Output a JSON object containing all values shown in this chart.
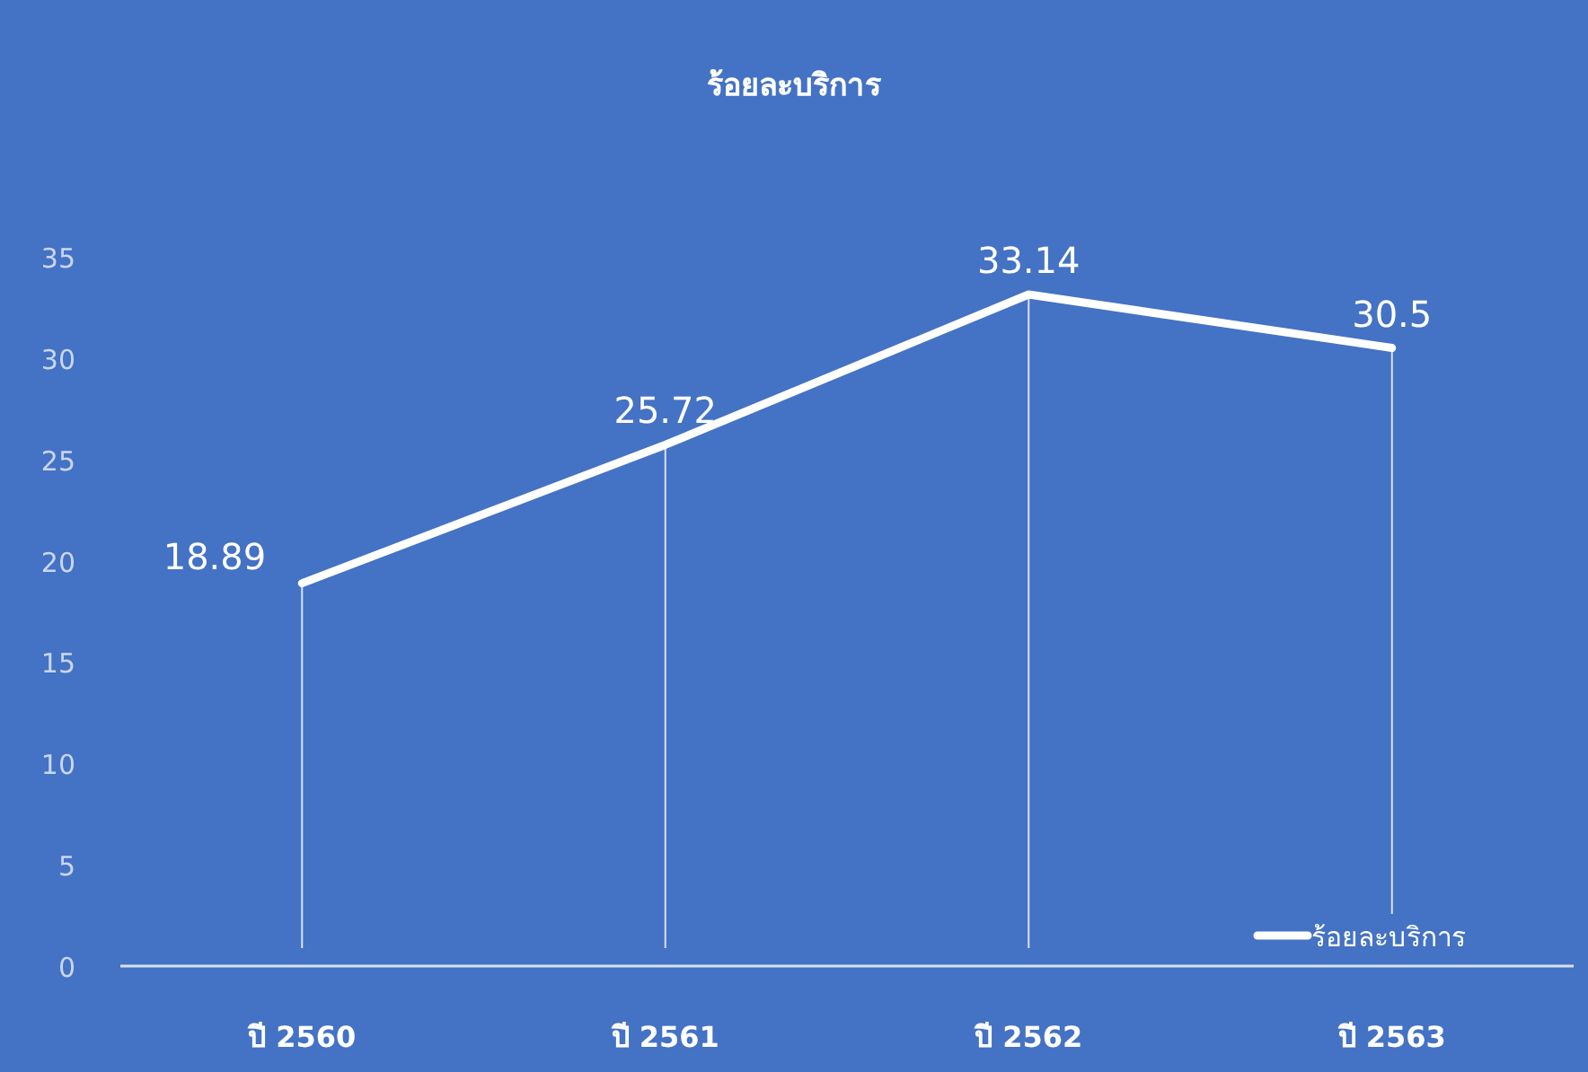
{
  "chart_data": {
    "type": "line",
    "title": "ร้อยละบริการ",
    "categories": [
      "ปี 2560",
      "ปี 2561",
      "ปี 2562",
      "ปี 2563"
    ],
    "series": [
      {
        "name": "ร้อยละบริการ",
        "color": "#ffffff",
        "values": [
          18.89,
          25.72,
          33.14,
          30.5
        ]
      }
    ],
    "ylim": [
      0,
      35
    ],
    "yticks": [
      0,
      5,
      10,
      15,
      20,
      25,
      30,
      35
    ],
    "data_labels": true,
    "legend": "bottom right",
    "grid": "x",
    "marker": "none",
    "line_style": "solid"
  }
}
